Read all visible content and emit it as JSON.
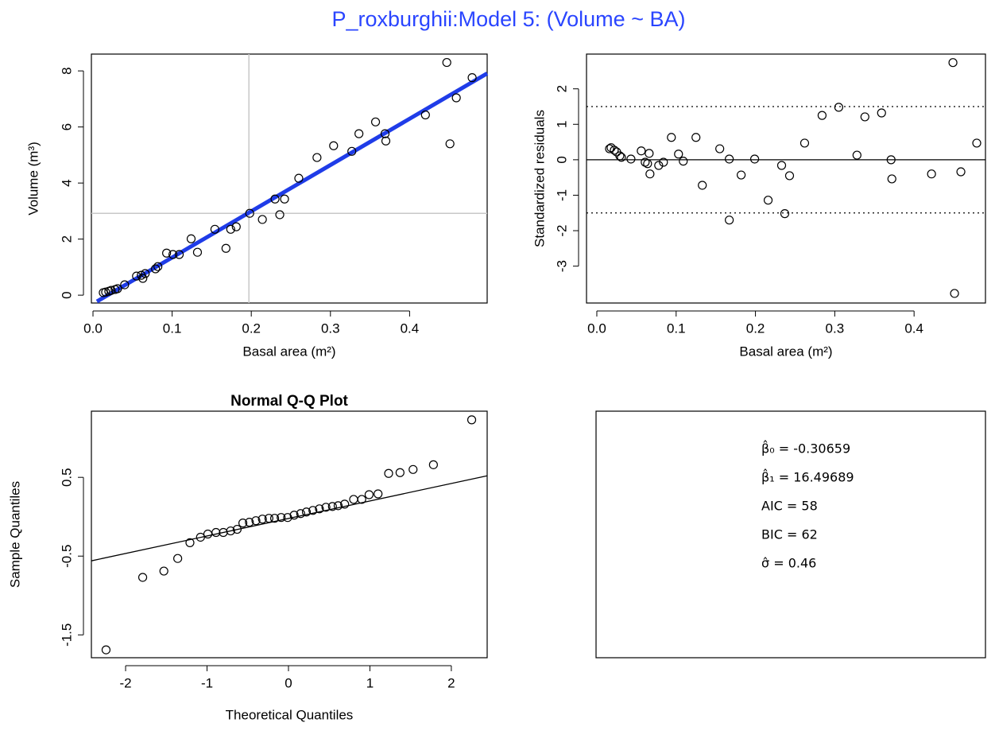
{
  "title": "P_roxburghii:Model 5: (Volume ~ BA)",
  "chart_data": [
    {
      "type": "scatter",
      "xlabel": "Basal area (m²)",
      "ylabel": "Volume (m³)",
      "x": [
        0.013,
        0.016,
        0.02,
        0.023,
        0.028,
        0.031,
        0.04,
        0.055,
        0.061,
        0.063,
        0.066,
        0.079,
        0.082,
        0.093,
        0.101,
        0.109,
        0.124,
        0.132,
        0.154,
        0.168,
        0.174,
        0.181,
        0.198,
        0.214,
        0.23,
        0.236,
        0.242,
        0.26,
        0.283,
        0.304,
        0.327,
        0.336,
        0.357,
        0.369,
        0.37,
        0.42,
        0.447,
        0.451,
        0.459,
        0.479
      ],
      "values": [
        0.09,
        0.11,
        0.14,
        0.17,
        0.2,
        0.23,
        0.37,
        0.68,
        0.71,
        0.6,
        0.77,
        0.94,
        1.02,
        1.5,
        1.45,
        1.45,
        2.01,
        1.53,
        2.35,
        1.67,
        2.35,
        2.44,
        2.92,
        2.7,
        3.43,
        2.87,
        3.43,
        4.17,
        4.91,
        5.33,
        5.13,
        5.76,
        6.18,
        5.76,
        5.5,
        6.43,
        8.3,
        5.4,
        7.04,
        7.76
      ],
      "fit_line": {
        "x": [
          0.005,
          0.498
        ],
        "y": [
          -0.225,
          7.91
        ],
        "color": "#1f3ce8"
      },
      "vline": 0.197,
      "hline": 2.92,
      "ref_color": "#c8c8c8",
      "xlim": [
        -0.002,
        0.498
      ],
      "ylim": [
        -0.28,
        8.6
      ],
      "xticks": [
        {
          "value": 0,
          "label": "0.0"
        },
        0.1,
        0.2,
        0.3,
        0.4
      ],
      "yticks": [
        0,
        2,
        4,
        6,
        8
      ]
    },
    {
      "type": "scatter",
      "xlabel": "Basal area (m²)",
      "ylabel": "Standardized residuals",
      "x": [
        0.016,
        0.018,
        0.022,
        0.025,
        0.029,
        0.031,
        0.043,
        0.056,
        0.061,
        0.064,
        0.066,
        0.067,
        0.078,
        0.084,
        0.094,
        0.103,
        0.109,
        0.125,
        0.133,
        0.155,
        0.167,
        0.167,
        0.182,
        0.199,
        0.216,
        0.233,
        0.237,
        0.243,
        0.262,
        0.284,
        0.305,
        0.328,
        0.338,
        0.359,
        0.371,
        0.372,
        0.422,
        0.449,
        0.451,
        0.459,
        0.479
      ],
      "values": [
        0.31,
        0.34,
        0.27,
        0.22,
        0.11,
        0.07,
        0.02,
        0.25,
        -0.07,
        -0.11,
        0.18,
        -0.4,
        -0.16,
        -0.07,
        0.63,
        0.16,
        -0.04,
        0.63,
        -0.72,
        0.31,
        0.02,
        -1.7,
        -0.43,
        0.02,
        -1.14,
        -0.16,
        -1.52,
        -0.45,
        0.47,
        1.25,
        1.48,
        0.13,
        1.21,
        1.32,
        0.0,
        -0.54,
        -0.4,
        2.74,
        -3.77,
        -0.34,
        0.47
      ],
      "hlines": [
        {
          "value": 0,
          "style": "solid"
        },
        {
          "value": 1.5,
          "style": "dotted"
        },
        {
          "value": -1.5,
          "style": "dotted"
        }
      ],
      "xlim": [
        -0.013,
        0.49
      ],
      "ylim": [
        -4.04,
        2.98
      ],
      "xticks": [
        {
          "value": 0,
          "label": "0.0"
        },
        0.1,
        0.2,
        0.3,
        0.4
      ],
      "yticks": [
        -3,
        -2,
        -1,
        0,
        1,
        2
      ]
    },
    {
      "type": "scatter",
      "title": "Normal Q-Q Plot",
      "xlabel": "Theoretical Quantiles",
      "ylabel": "Sample Quantiles",
      "x": [
        -2.24,
        -1.79,
        -1.53,
        -1.36,
        -1.21,
        -1.08,
        -0.99,
        -0.89,
        -0.8,
        -0.71,
        -0.63,
        -0.56,
        -0.48,
        -0.4,
        -0.32,
        -0.24,
        -0.17,
        -0.09,
        -0.01,
        0.07,
        0.15,
        0.22,
        0.3,
        0.38,
        0.46,
        0.54,
        0.61,
        0.69,
        0.8,
        0.9,
        0.99,
        1.1,
        1.23,
        1.37,
        1.53,
        1.78,
        2.25
      ],
      "values": [
        -1.69,
        -0.77,
        -0.69,
        -0.53,
        -0.33,
        -0.26,
        -0.22,
        -0.2,
        -0.2,
        -0.18,
        -0.16,
        -0.08,
        -0.07,
        -0.05,
        -0.03,
        -0.02,
        -0.02,
        -0.01,
        -0.01,
        0.02,
        0.04,
        0.06,
        0.08,
        0.1,
        0.12,
        0.13,
        0.14,
        0.16,
        0.22,
        0.22,
        0.28,
        0.29,
        0.55,
        0.56,
        0.6,
        0.66,
        1.23
      ],
      "fit_line": {
        "x": [
          -2.42,
          2.44
        ],
        "y": [
          -0.56,
          0.52
        ],
        "color": "#000000"
      },
      "xlim": [
        -2.42,
        2.44
      ],
      "ylim": [
        -1.79,
        1.34
      ],
      "xticks": [
        -2,
        -1,
        0,
        1,
        2
      ],
      "yticks": [
        -1.5,
        -0.5,
        0.5
      ]
    }
  ],
  "stats": [
    "β̂₀ = -0.30659",
    "β̂₁ = 16.49689",
    "AIC = 58",
    "BIC = 62",
    "σ̂ = 0.46"
  ]
}
